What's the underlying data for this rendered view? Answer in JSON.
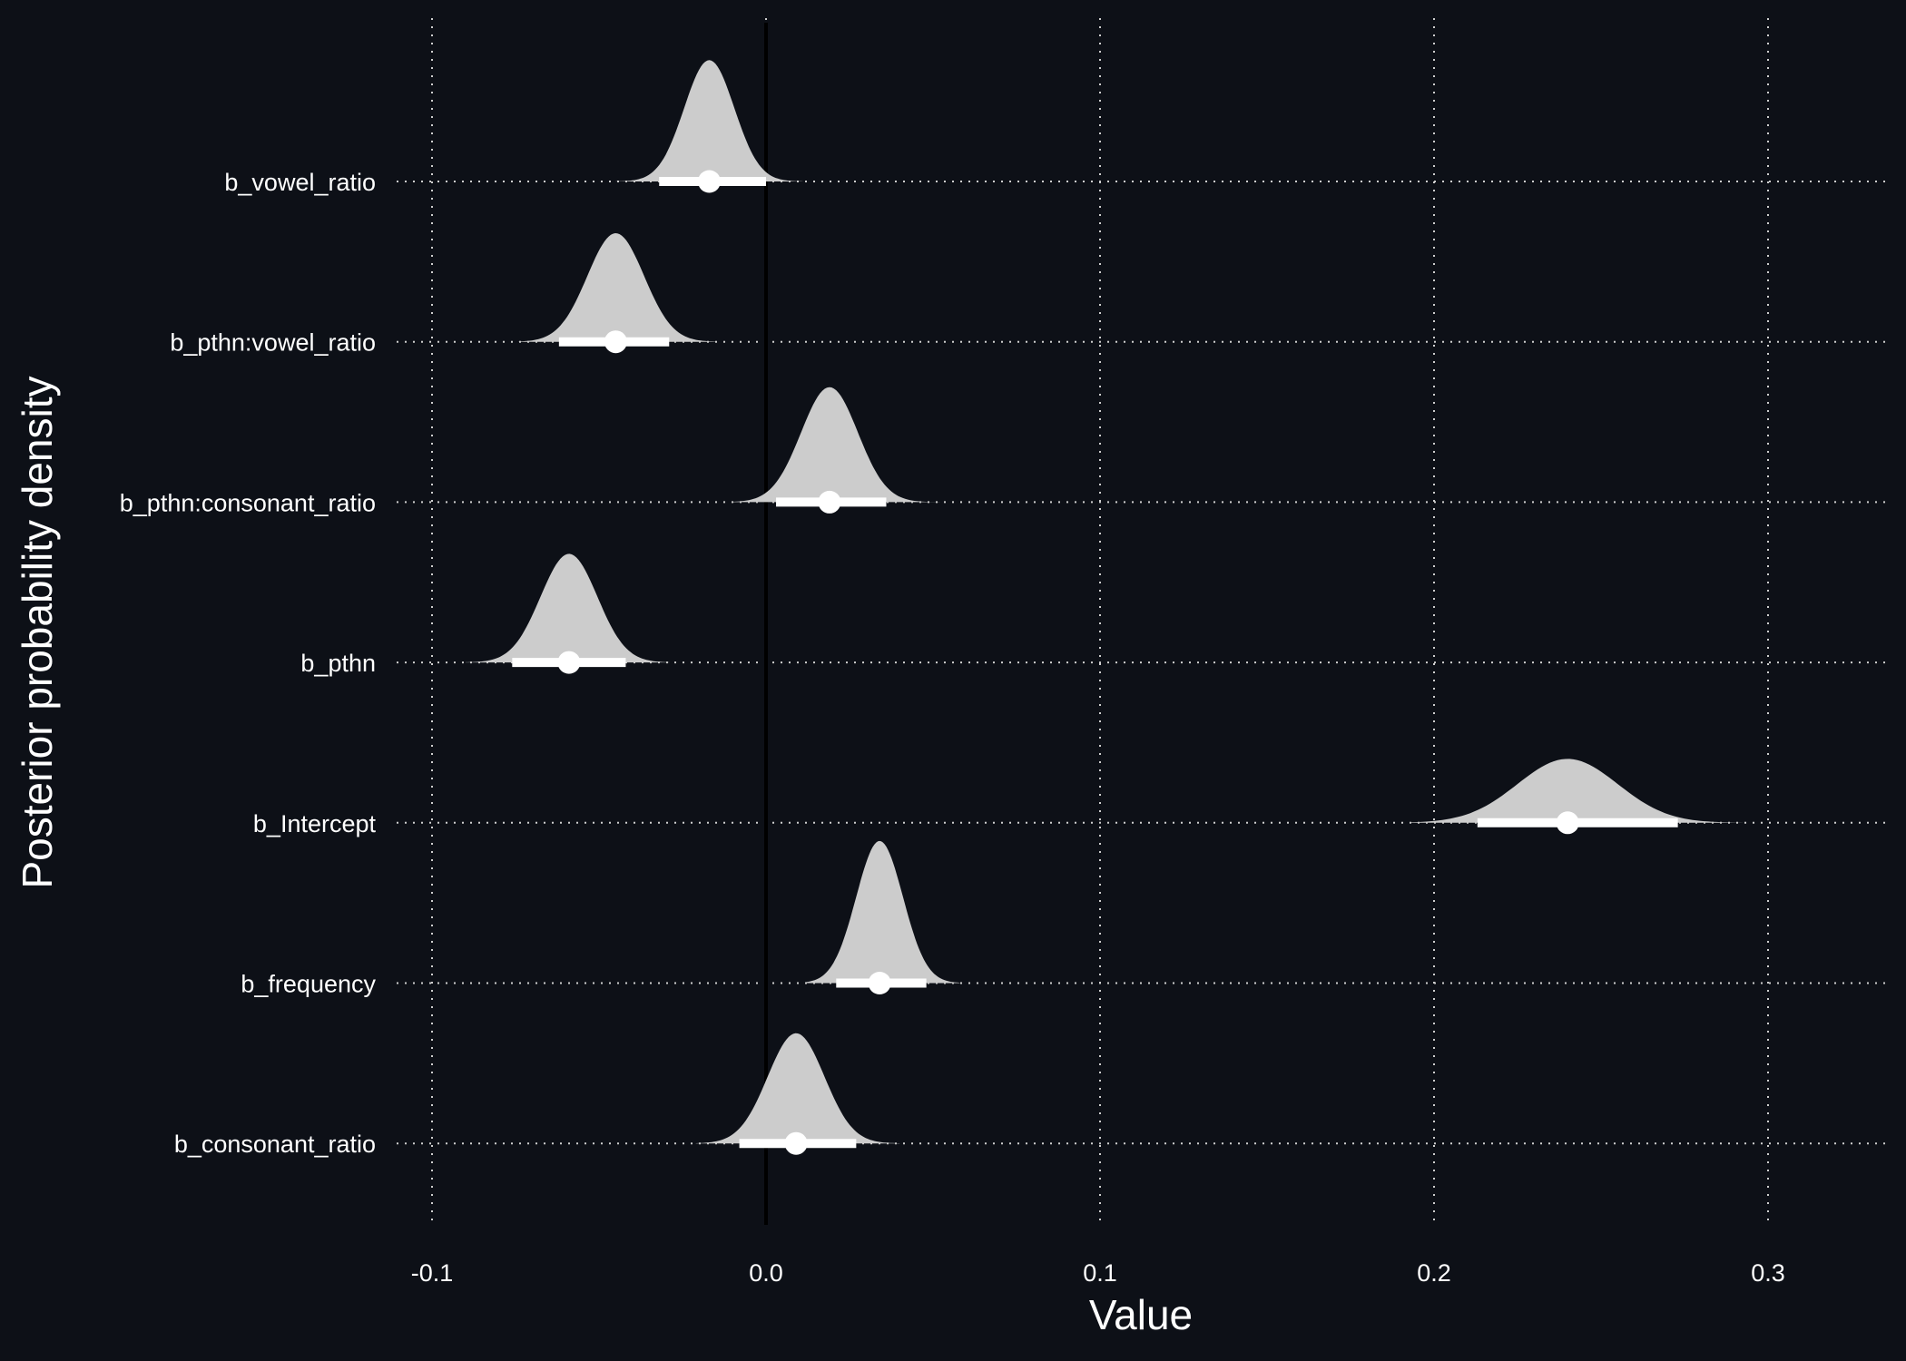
{
  "chart_data": {
    "type": "ridgeline",
    "xlabel": "Value",
    "ylabel": "Posterior probability density",
    "xlim": [
      -0.1,
      0.33
    ],
    "x_ticks": [
      -0.1,
      0.0,
      0.1,
      0.2,
      0.3
    ],
    "x_tick_labels": [
      "-0.1",
      "0.0",
      "0.1",
      "0.2",
      "0.3"
    ],
    "grid": "dotted",
    "reference_line_x": 0.0,
    "colors": {
      "background": "#0d1017",
      "density_fill": "#cccccc",
      "interval": "#ffffff",
      "point": "#ffffff",
      "grid": "#cfcfcf",
      "reference_line": "#000000"
    },
    "categories": [
      "b_vowel_ratio",
      "b_pthn:vowel_ratio",
      "b_pthn:consonant_ratio",
      "b_pthn",
      "b_Intercept",
      "b_frequency",
      "b_consonant_ratio"
    ],
    "series": [
      {
        "name": "b_vowel_ratio",
        "median": -0.017,
        "interval": [
          -0.032,
          0.0
        ],
        "mean": -0.017,
        "sd": 0.0075,
        "range": [
          -0.045,
          0.011
        ],
        "rel_height": 0.76
      },
      {
        "name": "b_pthn:vowel_ratio",
        "median": -0.045,
        "interval": [
          -0.062,
          -0.029
        ],
        "mean": -0.045,
        "sd": 0.0085,
        "range": [
          -0.074,
          -0.015
        ],
        "rel_height": 0.68
      },
      {
        "name": "b_pthn:consonant_ratio",
        "median": 0.019,
        "interval": [
          0.003,
          0.036
        ],
        "mean": 0.019,
        "sd": 0.0085,
        "range": [
          -0.01,
          0.052
        ],
        "rel_height": 0.72
      },
      {
        "name": "b_pthn",
        "median": -0.059,
        "interval": [
          -0.076,
          -0.042
        ],
        "mean": -0.059,
        "sd": 0.0085,
        "range": [
          -0.09,
          -0.029
        ],
        "rel_height": 0.68
      },
      {
        "name": "b_Intercept",
        "median": 0.24,
        "interval": [
          0.213,
          0.273
        ],
        "mean": 0.24,
        "sd": 0.015,
        "range": [
          0.193,
          0.3
        ],
        "rel_height": 0.4
      },
      {
        "name": "b_frequency",
        "median": 0.034,
        "interval": [
          0.021,
          0.048
        ],
        "mean": 0.034,
        "sd": 0.007,
        "range": [
          0.012,
          0.058
        ],
        "rel_height": 0.89
      },
      {
        "name": "b_consonant_ratio",
        "median": 0.009,
        "interval": [
          -0.008,
          0.027
        ],
        "mean": 0.009,
        "sd": 0.0085,
        "range": [
          -0.021,
          0.04
        ],
        "rel_height": 0.69
      }
    ]
  }
}
